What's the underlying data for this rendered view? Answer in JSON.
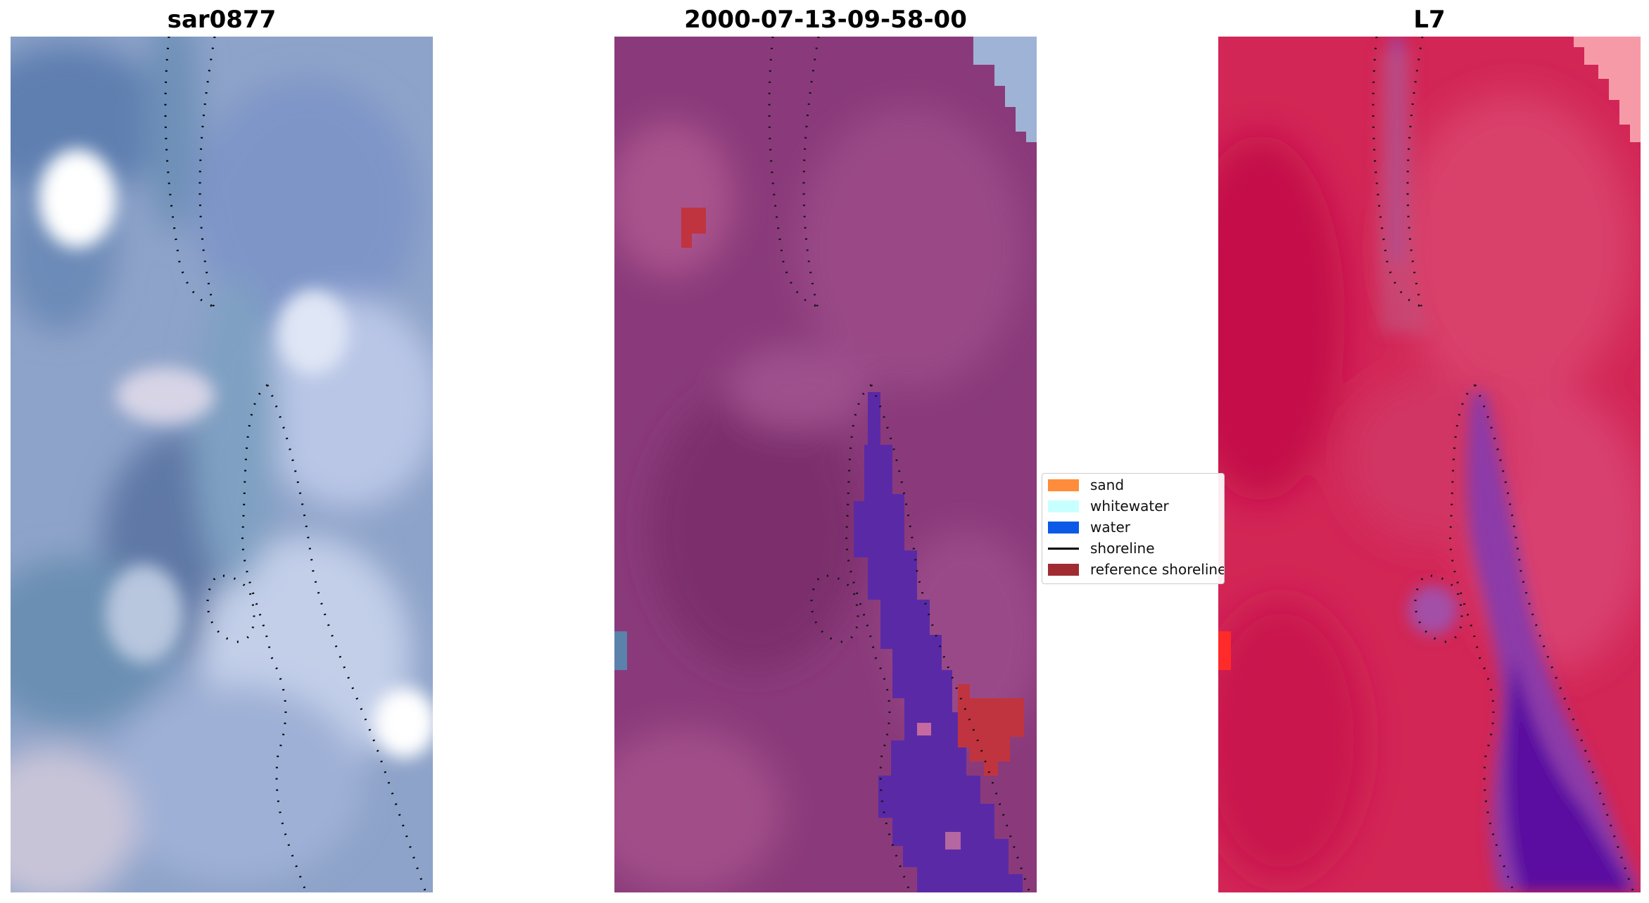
{
  "panels": [
    {
      "title": "sar0877",
      "kind": "rgb"
    },
    {
      "title": "2000-07-13-09-58-00",
      "kind": "classified"
    },
    {
      "title": "L7",
      "kind": "index"
    }
  ],
  "legend": {
    "items": [
      {
        "label": "sand",
        "color": "#ff8c3a",
        "type": "patch"
      },
      {
        "label": "whitewater",
        "color": "#c8ffff",
        "type": "patch"
      },
      {
        "label": "water",
        "color": "#0a5ae6",
        "type": "patch"
      },
      {
        "label": "shoreline",
        "color": "#000000",
        "type": "line"
      },
      {
        "label": "reference shoreline",
        "color": "#a02c32",
        "type": "patch"
      }
    ]
  },
  "colors": {
    "rgb_base": "#7f96c1",
    "classified_base": "#8a3a7a",
    "classified_water": "#5a2aa6",
    "classified_ref": "#c0343f",
    "index_base": "#d61f55",
    "index_channel": "#8a3aa8",
    "index_deep": "#5a0aa0"
  }
}
